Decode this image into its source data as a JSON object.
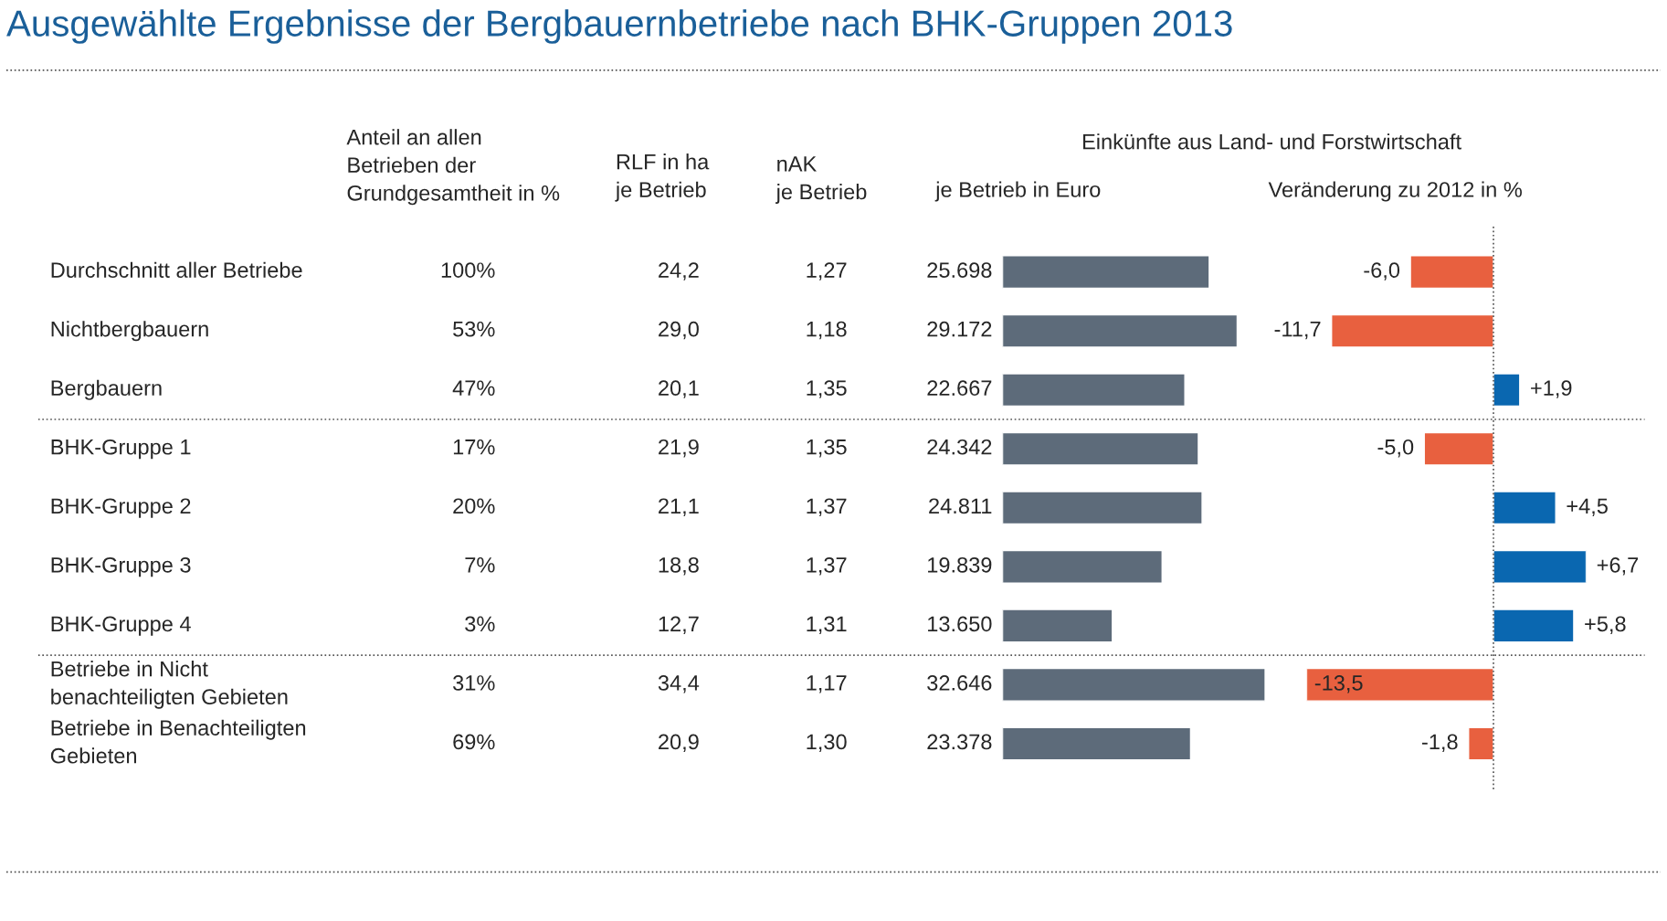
{
  "chart_data": [
    {
      "type": "other",
      "title": "Ausgewählte Ergebnisse der Bergbauernbetriebe nach BHK-Gruppen 2013",
      "categories": [
        "Durchschnitt aller Betriebe",
        "Nichtbergbauern",
        "Bergbauern",
        "BHK-Gruppe 1",
        "BHK-Gruppe 2",
        "BHK-Gruppe 3",
        "BHK-Gruppe 4",
        "Betriebe in Nicht\nbenachteiligten Gebieten",
        "Betriebe in Benachteiligten\nGebieten"
      ],
      "annotations": [
        "Anteil an allen\nBetrieben der\nGrundgesamtheit in %",
        "RLF in ha\nje Betrieb",
        "nAK\nje Betrieb",
        "100%",
        "24,2",
        "1,27",
        "53%",
        "29,0",
        "1,18",
        "47%",
        "20,1",
        "1,35",
        "17%",
        "21,9",
        "1,35",
        "20%",
        "21,1",
        "1,37",
        "7%",
        "18,8",
        "1,37",
        "3%",
        "12,7",
        "1,31",
        "31%",
        "34,4",
        "1,17",
        "69%",
        "20,9",
        "1,30"
      ]
    },
    {
      "type": "bar",
      "orientation": "horizontal",
      "title": "Einkünfte aus Land- und Forstwirtschaft",
      "subtitle": "je Betrieb in Euro",
      "categories": [
        null,
        null,
        null,
        null,
        null,
        null,
        null,
        null,
        null
      ],
      "values": [
        25698,
        29172,
        22667,
        24342,
        24811,
        19839,
        13650,
        32646,
        23378
      ],
      "value_labels": [
        "25.698",
        "29.172",
        "22.667",
        "24.342",
        "24.811",
        "19.839",
        "13.650",
        "32.646",
        "23.378"
      ],
      "color": "#5d6b7a"
    },
    {
      "type": "bar",
      "orientation": "horizontal",
      "title": "Veränderung zu 2012 in %",
      "categories": [
        null,
        null,
        null,
        null,
        null,
        null,
        null,
        null,
        null
      ],
      "values": [
        -6.0,
        -11.7,
        1.9,
        -5.0,
        4.5,
        6.7,
        5.8,
        -13.5,
        -1.8
      ],
      "value_labels": [
        "-6,0",
        "-11,7",
        "+1,9",
        "-5,0",
        "+4,5",
        "+6,7",
        "+5,8",
        "-13,5",
        "-1,8"
      ],
      "colors": [
        "#e8603f",
        "#e8603f",
        "#0a67b0",
        "#e8603f",
        "#0a67b0",
        "#0a67b0",
        "#0a67b0",
        "#e8603f",
        "#e8603f"
      ],
      "ref_lines": [
        {
          "axis": "x",
          "value": 0,
          "line_style": "dotted",
          "color": "#555555"
        }
      ]
    }
  ]
}
